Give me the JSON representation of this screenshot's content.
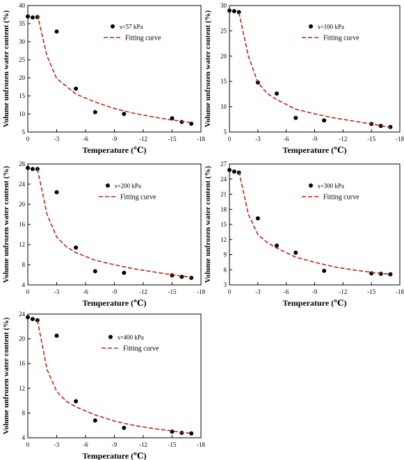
{
  "colors": {
    "marker": "#000000",
    "curve": "#c0221b",
    "axis": "#000000"
  },
  "chart_data": [
    {
      "type": "scatter",
      "title": "",
      "xlabel": "Temperature (℃)",
      "ylabel": "Volume unfrozen water content (%)",
      "xlim": [
        0,
        -18
      ],
      "ylim": [
        5,
        40
      ],
      "xticks": [
        0,
        -3,
        -6,
        -9,
        -12,
        -15,
        -18
      ],
      "xtick_labels": [
        "0",
        "-3",
        "-6",
        "-9",
        "-12",
        "-15",
        "-18"
      ],
      "yticks": [
        5,
        10,
        15,
        20,
        25,
        30,
        35,
        40
      ],
      "ytick_labels": [
        "5",
        "10",
        "15",
        "20",
        "25",
        "30",
        "35",
        "40"
      ],
      "legend_position": "top-right",
      "series": [
        {
          "name": "s=57 kPa",
          "style": "markers",
          "x": [
            0,
            -0.5,
            -1,
            -3,
            -5,
            -7,
            -10,
            -15,
            -16,
            -17
          ],
          "y": [
            37,
            36.7,
            36.8,
            32.8,
            17,
            10.5,
            10,
            8.8,
            7.8,
            7.3
          ]
        },
        {
          "name": "Fitting curve",
          "style": "dashed",
          "x": [
            -1,
            -2,
            -3,
            -5,
            -7,
            -9,
            -11,
            -13,
            -15,
            -17
          ],
          "y": [
            37.5,
            26,
            19.8,
            15.5,
            13.3,
            11.5,
            10.2,
            9.2,
            8.3,
            7.6
          ]
        }
      ]
    },
    {
      "type": "scatter",
      "title": "",
      "xlabel": "Temperature (℃)",
      "ylabel": "Volume unfrozen water content (%)",
      "xlim": [
        0,
        -18
      ],
      "ylim": [
        5,
        30
      ],
      "xticks": [
        0,
        -3,
        -6,
        -9,
        -12,
        -15,
        -18
      ],
      "xtick_labels": [
        "0",
        "-3",
        "-6",
        "-9",
        "-12",
        "-15",
        "-18"
      ],
      "yticks": [
        5,
        10,
        15,
        20,
        25,
        30
      ],
      "ytick_labels": [
        "5",
        "10",
        "15",
        "20",
        "25",
        "30"
      ],
      "legend_position": "top-right",
      "series": [
        {
          "name": "s=100 kPa",
          "style": "markers",
          "x": [
            0,
            -0.5,
            -1,
            -3,
            -5,
            -7,
            -10,
            -15,
            -16,
            -17
          ],
          "y": [
            29,
            28.9,
            28.7,
            14.8,
            12.6,
            7.8,
            7.3,
            6.6,
            6.2,
            6
          ]
        },
        {
          "name": "Fitting curve",
          "style": "dashed",
          "x": [
            -1,
            -2,
            -3,
            -4,
            -5,
            -7,
            -9,
            -11,
            -13,
            -15,
            -17
          ],
          "y": [
            28.6,
            20,
            14.8,
            12.6,
            11.4,
            9.5,
            8.6,
            7.8,
            7.2,
            6.6,
            5.9
          ]
        }
      ]
    },
    {
      "type": "scatter",
      "title": "",
      "xlabel": "Temperature (℃)",
      "ylabel": "Volume unfrozen water content (%)",
      "xlim": [
        0,
        -18
      ],
      "ylim": [
        4,
        28
      ],
      "xticks": [
        0,
        -3,
        -6,
        -9,
        -12,
        -15,
        -18
      ],
      "xtick_labels": [
        "0",
        "-3",
        "-6",
        "-9",
        "-12",
        "-15",
        "-18"
      ],
      "yticks": [
        4,
        8,
        12,
        16,
        20,
        24,
        28
      ],
      "ytick_labels": [
        "4",
        "8",
        "12",
        "16",
        "20",
        "24",
        "28"
      ],
      "legend_position": "top-right",
      "series": [
        {
          "name": "s=200 kPa",
          "style": "markers",
          "x": [
            0,
            -0.5,
            -1,
            -3,
            -5,
            -7,
            -10,
            -15,
            -16,
            -17
          ],
          "y": [
            27.2,
            27,
            27,
            22.4,
            11.4,
            6.7,
            6.4,
            5.9,
            5.6,
            5.4
          ]
        },
        {
          "name": "Fitting curve",
          "style": "dashed",
          "x": [
            -1,
            -2,
            -3,
            -4,
            -5,
            -7,
            -9,
            -11,
            -13,
            -15,
            -17
          ],
          "y": [
            27,
            18,
            13.5,
            11.6,
            10.4,
            8.9,
            8,
            7.2,
            6.6,
            6,
            5.5
          ]
        }
      ]
    },
    {
      "type": "scatter",
      "title": "",
      "xlabel": "Temperature (℃)",
      "ylabel": "Volume unfrozen water content (%)",
      "xlim": [
        0,
        -18
      ],
      "ylim": [
        3,
        27
      ],
      "xticks": [
        0,
        -3,
        -6,
        -9,
        -12,
        -15,
        -18
      ],
      "xtick_labels": [
        "0",
        "-3",
        "-6",
        "-9",
        "-12",
        "-15",
        "-18"
      ],
      "yticks": [
        3,
        6,
        9,
        12,
        15,
        18,
        21,
        24,
        27
      ],
      "ytick_labels": [
        "3",
        "6",
        "9",
        "12",
        "15",
        "18",
        "21",
        "24",
        "27"
      ],
      "legend_position": "top-right",
      "series": [
        {
          "name": "s=300 kPa",
          "style": "markers",
          "x": [
            0,
            -0.5,
            -1,
            -3,
            -5,
            -7,
            -10,
            -15,
            -16,
            -17
          ],
          "y": [
            25.8,
            25.5,
            25.3,
            16.2,
            10.8,
            9.4,
            5.8,
            5.3,
            5.2,
            5.1
          ]
        },
        {
          "name": "Fitting curve",
          "style": "dashed",
          "x": [
            -1,
            -2,
            -3,
            -4,
            -5,
            -7,
            -9,
            -11,
            -13,
            -15,
            -17
          ],
          "y": [
            25.5,
            17,
            13,
            11.4,
            10.3,
            8.5,
            7.5,
            6.6,
            6,
            5.5,
            5.1
          ]
        }
      ]
    },
    {
      "type": "scatter",
      "title": "",
      "xlabel": "Temperature (℃)",
      "ylabel": "Volume unfrozen water content (%)",
      "xlim": [
        0,
        -18
      ],
      "ylim": [
        4,
        24
      ],
      "xticks": [
        0,
        -3,
        -6,
        -9,
        -12,
        -15,
        -18
      ],
      "xtick_labels": [
        "0",
        "-3",
        "-6",
        "-9",
        "-12",
        "-15",
        "-18"
      ],
      "yticks": [
        4,
        8,
        12,
        16,
        20,
        24
      ],
      "ytick_labels": [
        "4",
        "8",
        "12",
        "16",
        "20",
        "24"
      ],
      "legend_position": "top-right",
      "series": [
        {
          "name": "s=400 kPa",
          "style": "markers",
          "x": [
            0,
            -0.5,
            -1,
            -3,
            -5,
            -7,
            -10,
            -15,
            -16,
            -17
          ],
          "y": [
            23.5,
            23.2,
            23,
            20.5,
            9.9,
            6.8,
            5.6,
            5,
            4.8,
            4.7
          ]
        },
        {
          "name": "Fitting curve",
          "style": "dashed",
          "x": [
            -1,
            -2,
            -3,
            -4,
            -5,
            -7,
            -9,
            -11,
            -13,
            -15,
            -17
          ],
          "y": [
            23,
            15,
            11.5,
            9.9,
            9,
            7.7,
            6.7,
            6,
            5.5,
            5.1,
            4.7
          ]
        }
      ]
    }
  ]
}
